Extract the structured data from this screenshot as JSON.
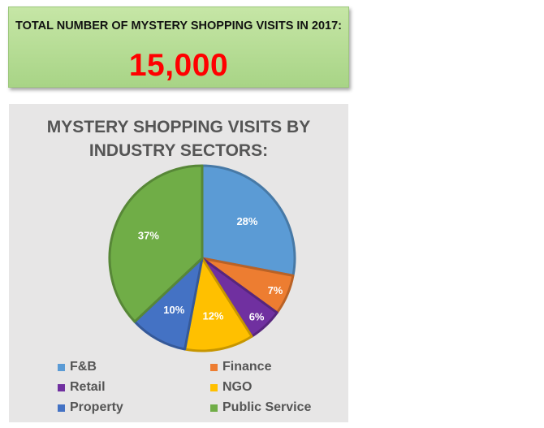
{
  "banner": {
    "label": "TOTAL NUMBER OF MYSTERY SHOPPING VISITS IN 2017:",
    "value": "15,000"
  },
  "chart_data": {
    "type": "pie",
    "title": "MYSTERY SHOPPING VISITS BY INDUSTRY SECTORS:",
    "legend_placement": "bottom",
    "slices": [
      {
        "label": "F&B",
        "value": 28,
        "value_label": "28%",
        "color": "#5b9bd5"
      },
      {
        "label": "Finance",
        "value": 7,
        "value_label": "7%",
        "color": "#ed7d31"
      },
      {
        "label": "Retail",
        "value": 6,
        "value_label": "6%",
        "color": "#7030a0"
      },
      {
        "label": "NGO",
        "value": 12,
        "value_label": "12%",
        "color": "#ffc000"
      },
      {
        "label": "Property",
        "value": 10,
        "value_label": "10%",
        "color": "#4472c4"
      },
      {
        "label": "Public Service",
        "value": 37,
        "value_label": "37%",
        "color": "#70ad47"
      }
    ]
  }
}
